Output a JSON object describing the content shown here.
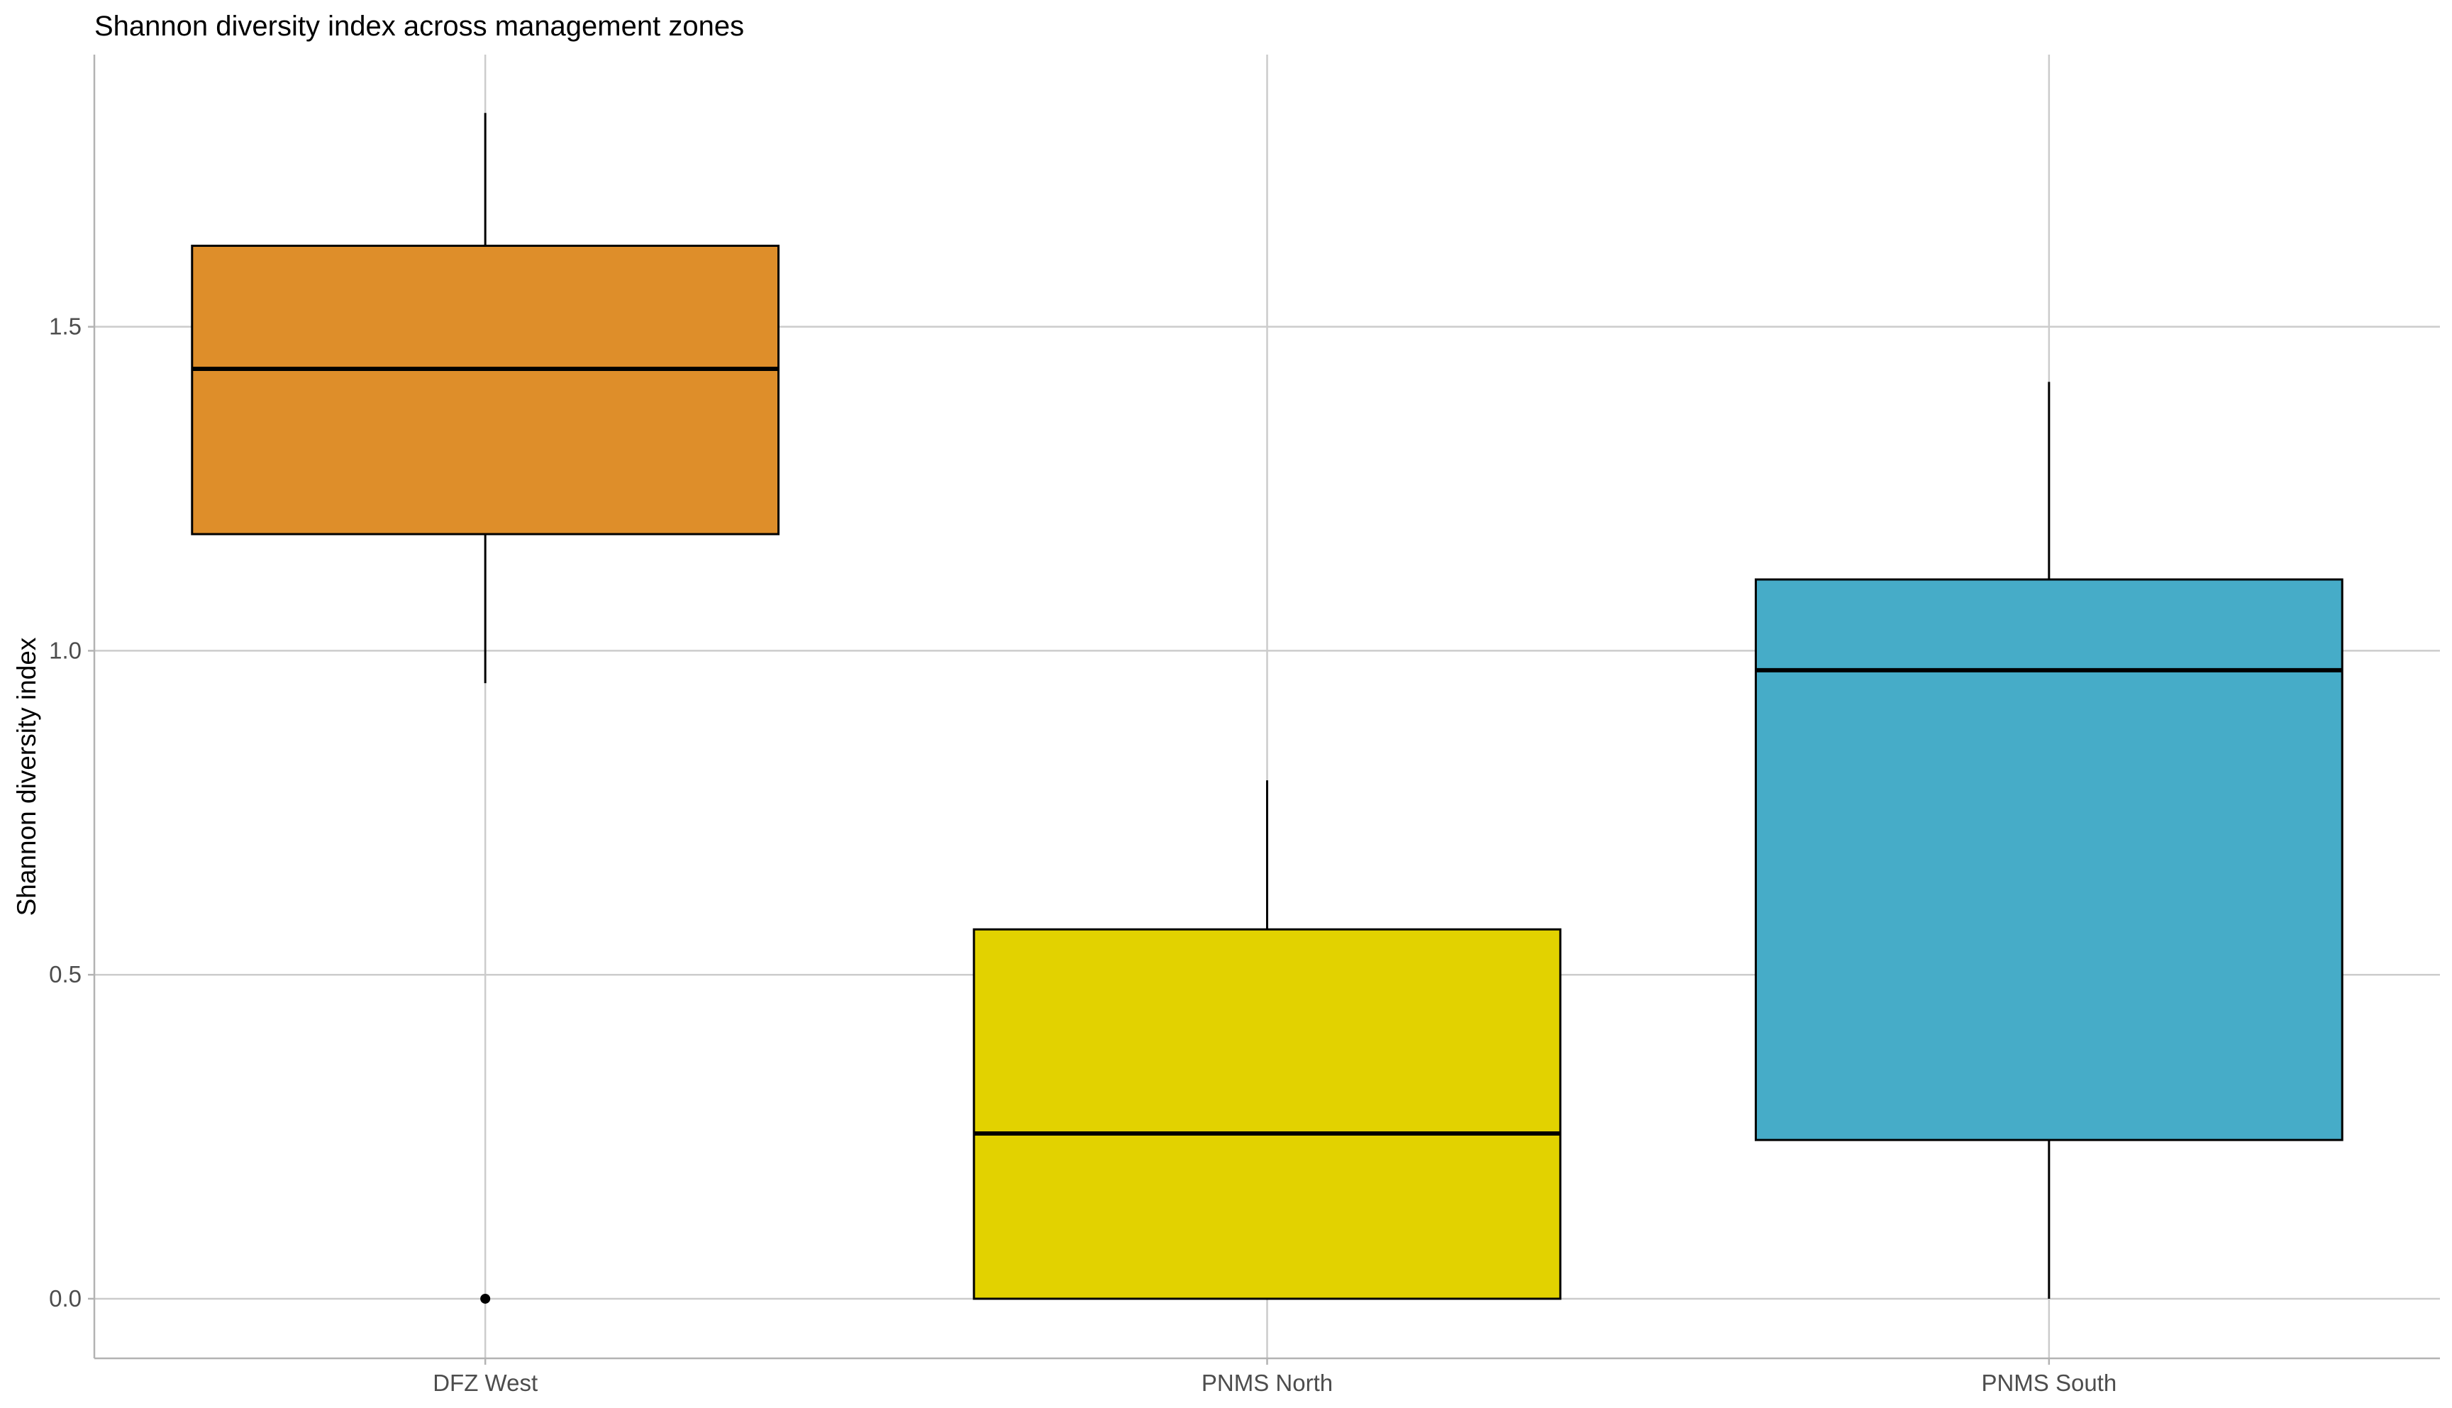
{
  "chart_data": {
    "type": "boxplot",
    "title": "Shannon diversity index  across management zones",
    "xlabel": "",
    "ylabel": "Shannon diversity index",
    "ylim": [
      -0.092,
      1.92
    ],
    "y_ticks": [
      0.0,
      0.5,
      1.0,
      1.5
    ],
    "y_tick_labels": [
      "0.0",
      "0.5",
      "1.0",
      "1.5"
    ],
    "grid": true,
    "legend": "none",
    "categories": [
      "DFZ West",
      "PNMS North",
      "PNMS South"
    ],
    "boxes": [
      {
        "category": "DFZ West",
        "whisker_low": 0.95,
        "q1": 1.18,
        "median": 1.435,
        "q3": 1.625,
        "whisker_high": 1.83,
        "outliers": [
          0.0
        ],
        "color": "#DE8E2A"
      },
      {
        "category": "PNMS North",
        "whisker_low": 0.0,
        "q1": 0.0,
        "median": 0.255,
        "q3": 0.57,
        "whisker_high": 0.8,
        "outliers": [],
        "color": "#E2D200"
      },
      {
        "category": "PNMS South",
        "whisker_low": 0.0,
        "q1": 0.245,
        "median": 0.97,
        "q3": 1.11,
        "whisker_high": 1.415,
        "outliers": [],
        "color": "#46ACC8"
      }
    ],
    "colors": {
      "grid": "#cccccc",
      "axis": "#b3b3b3",
      "box_outline": "#000000",
      "median": "#000000"
    }
  }
}
